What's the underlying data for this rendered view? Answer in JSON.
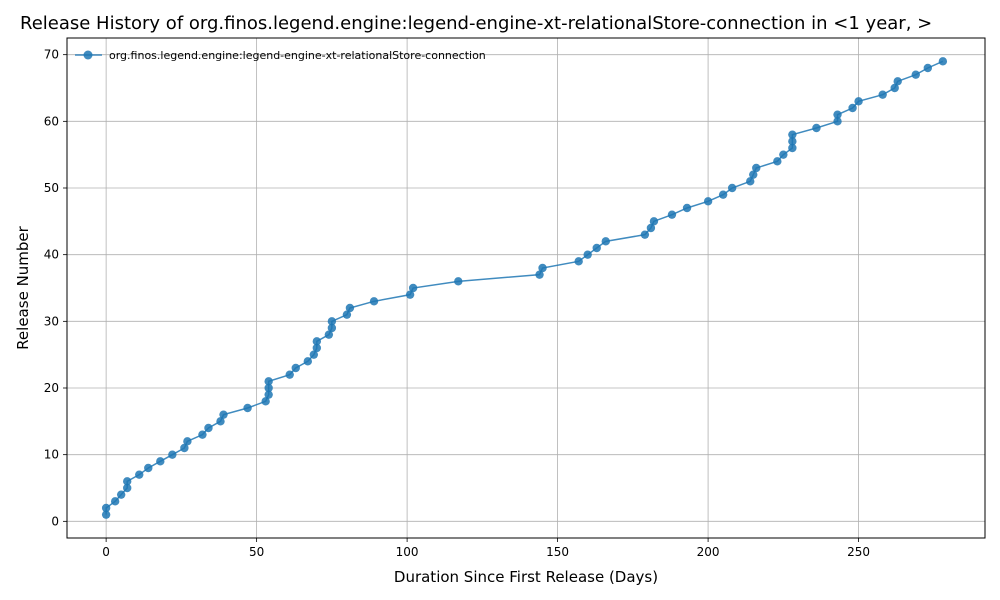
{
  "chart_data": {
    "type": "line",
    "title": "Release History of org.finos.legend.engine:legend-engine-xt-relationalStore-connection in <1 year, >",
    "xlabel": "Duration Since First Release (Days)",
    "ylabel": "Release Number",
    "xlim": [
      -13,
      292
    ],
    "ylim": [
      -2.5,
      72.5
    ],
    "xticks": [
      0,
      50,
      100,
      150,
      200,
      250
    ],
    "yticks": [
      0,
      10,
      20,
      30,
      40,
      50,
      60,
      70
    ],
    "grid": true,
    "legend_position": "top-left",
    "line_color": "#1f77b4",
    "series": [
      {
        "name": "org.finos.legend.engine:legend-engine-xt-relationalStore-connection",
        "x": [
          0,
          0,
          3,
          5,
          7,
          7,
          11,
          14,
          18,
          22,
          26,
          27,
          32,
          34,
          38,
          39,
          47,
          53,
          54,
          54,
          54,
          61,
          63,
          67,
          69,
          70,
          70,
          74,
          75,
          75,
          80,
          81,
          89,
          101,
          102,
          117,
          144,
          145,
          157,
          160,
          163,
          166,
          179,
          181,
          182,
          188,
          193,
          200,
          205,
          208,
          214,
          215,
          216,
          223,
          225,
          228,
          228,
          228,
          236,
          243,
          243,
          248,
          250,
          258,
          262,
          263,
          269,
          273,
          278
        ],
        "y": [
          1,
          2,
          3,
          4,
          5,
          6,
          7,
          8,
          9,
          10,
          11,
          12,
          13,
          14,
          15,
          16,
          17,
          18,
          19,
          20,
          21,
          22,
          23,
          24,
          25,
          26,
          27,
          28,
          29,
          30,
          31,
          32,
          33,
          34,
          35,
          36,
          37,
          38,
          39,
          40,
          41,
          42,
          43,
          44,
          45,
          46,
          47,
          48,
          49,
          50,
          51,
          52,
          53,
          54,
          55,
          56,
          57,
          58,
          59,
          60,
          61,
          62,
          63,
          64,
          65,
          66,
          67,
          68,
          69
        ]
      }
    ]
  }
}
